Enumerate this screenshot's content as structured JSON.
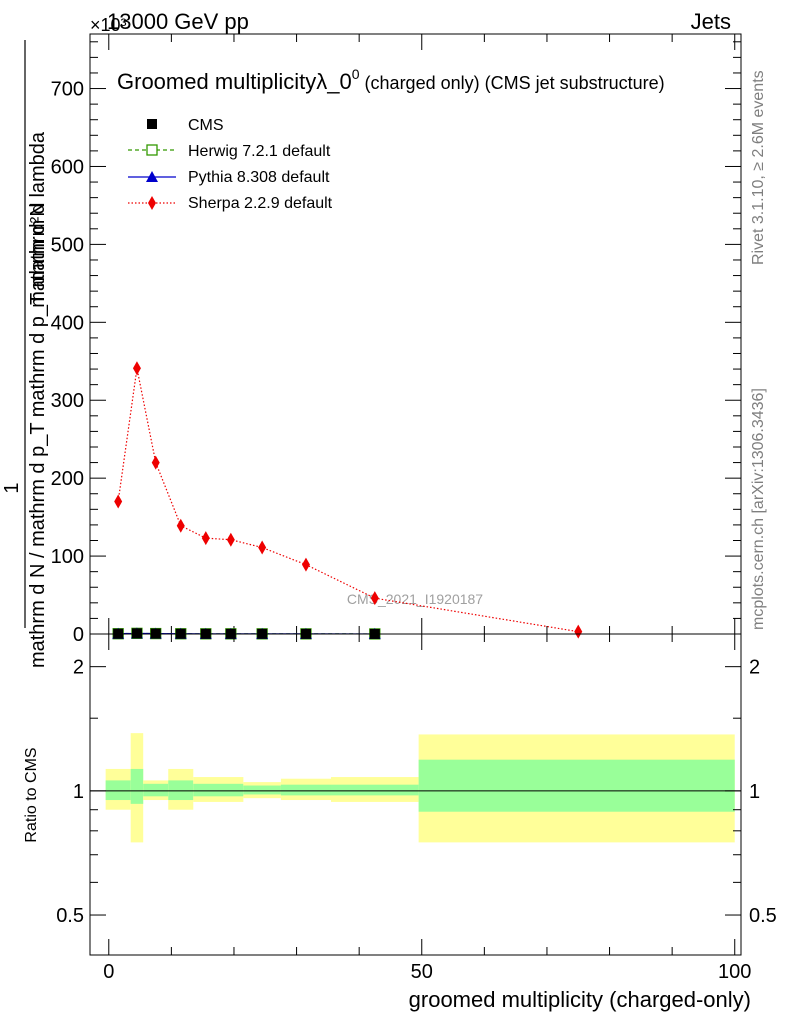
{
  "header": {
    "left": "13000 GeV pp",
    "right": "Jets",
    "exponent": "×10³"
  },
  "side_texts": {
    "rivet": "Rivet 3.1.10, ≥ 2.6M events",
    "mcplots": "mcplots.cern.ch [arXiv:1306.3436]"
  },
  "watermark": "CMS_2021_I1920187",
  "colors": {
    "cms": "#000000",
    "herwig": "#339900",
    "pythia": "#0000cc",
    "sherpa": "#ee0000",
    "band_inner": "#99ff99",
    "band_outer": "#ffff99"
  },
  "chart_data": [
    {
      "type": "line",
      "title": "Groomed multiplicityλ_0⁰ (charged only) (CMS jet substructure)",
      "title_main": "Groomed multiplicityλ_0",
      "title_sup": "0",
      "title_tail": " (charged only) (CMS jet substructure)",
      "ylabel_lines": [
        "1",
        "mathrm d N / mathrm d p_T mathrm d p_T mathrm d lambda",
        "mathrm d²N"
      ],
      "ylabel_num": "mathrm d²N",
      "ylabel_den": "mathrm d N / mathrm d p_T mathrm d p_T mathrm d lambda",
      "ylabel_one": "1",
      "xlim": [
        -3,
        101
      ],
      "ylim": [
        0,
        770
      ],
      "y_ticks": [
        0,
        100,
        200,
        300,
        400,
        500,
        600,
        700
      ],
      "y_tick_labels": [
        "0",
        "100",
        "200",
        "300",
        "400",
        "500",
        "600",
        "700"
      ],
      "legend_position": "top-left",
      "series": [
        {
          "name": "CMS",
          "marker": "square",
          "x": [
            1.5,
            4.5,
            7.5,
            11.5,
            15.5,
            19.5,
            24.5,
            31.5,
            42.5
          ],
          "y": [
            0.35,
            0.85,
            0.55,
            0.3,
            0.24,
            0.22,
            0.2,
            0.17,
            0.09
          ]
        },
        {
          "name": "Herwig 7.2.1 default",
          "marker": "open-square",
          "line": "dashed",
          "x": [
            1.5,
            4.5,
            7.5,
            11.5,
            15.5,
            19.5,
            24.5,
            31.5,
            42.5
          ],
          "y": [
            0.35,
            0.85,
            0.55,
            0.3,
            0.24,
            0.22,
            0.2,
            0.17,
            0.09
          ]
        },
        {
          "name": "Pythia 8.308 default",
          "marker": "triangle",
          "line": "solid",
          "x": [
            1.5,
            4.5,
            7.5,
            11.5,
            15.5,
            19.5,
            24.5,
            31.5,
            42.5
          ],
          "y": [
            0.35,
            0.85,
            0.55,
            0.3,
            0.24,
            0.22,
            0.2,
            0.17,
            0.09
          ]
        },
        {
          "name": "Sherpa 2.2.9 default",
          "marker": "diamond",
          "line": "dotted",
          "x": [
            1.5,
            4.5,
            7.5,
            11.5,
            15.5,
            19.5,
            24.5,
            31.5,
            42.5,
            75
          ],
          "y": [
            170,
            341,
            220,
            139,
            123,
            121,
            111,
            89,
            46,
            3
          ]
        }
      ]
    },
    {
      "type": "area",
      "ylabel": "Ratio to CMS",
      "xlabel": "groomed multiplicity (charged-only)",
      "xlim": [
        -3,
        101
      ],
      "ylim": [
        0.4,
        2.4
      ],
      "y_scale": "log",
      "y_ticks": [
        0.5,
        1,
        2
      ],
      "y_tick_labels": [
        "0.5",
        "1",
        "2"
      ],
      "x_ticks": [
        0,
        50,
        100
      ],
      "x_tick_labels": [
        "0",
        "50",
        "100"
      ],
      "bins": [
        {
          "x0": -0.5,
          "x1": 3.5,
          "inner": [
            0.95,
            1.06
          ],
          "outer": [
            0.9,
            1.13
          ]
        },
        {
          "x0": 3.5,
          "x1": 5.5,
          "inner": [
            0.93,
            1.13
          ],
          "outer": [
            0.75,
            1.38
          ]
        },
        {
          "x0": 5.5,
          "x1": 9.5,
          "inner": [
            0.97,
            1.04
          ],
          "outer": [
            0.95,
            1.06
          ]
        },
        {
          "x0": 9.5,
          "x1": 13.5,
          "inner": [
            0.95,
            1.06
          ],
          "outer": [
            0.9,
            1.13
          ]
        },
        {
          "x0": 13.5,
          "x1": 21.5,
          "inner": [
            0.97,
            1.04
          ],
          "outer": [
            0.94,
            1.08
          ]
        },
        {
          "x0": 21.5,
          "x1": 27.5,
          "inner": [
            0.98,
            1.03
          ],
          "outer": [
            0.96,
            1.05
          ]
        },
        {
          "x0": 27.5,
          "x1": 35.5,
          "inner": [
            0.975,
            1.035
          ],
          "outer": [
            0.95,
            1.07
          ]
        },
        {
          "x0": 35.5,
          "x1": 49.5,
          "inner": [
            0.975,
            1.035
          ],
          "outer": [
            0.94,
            1.08
          ]
        },
        {
          "x0": 49.5,
          "x1": 100,
          "inner": [
            0.89,
            1.19
          ],
          "outer": [
            0.75,
            1.37
          ]
        }
      ]
    }
  ]
}
